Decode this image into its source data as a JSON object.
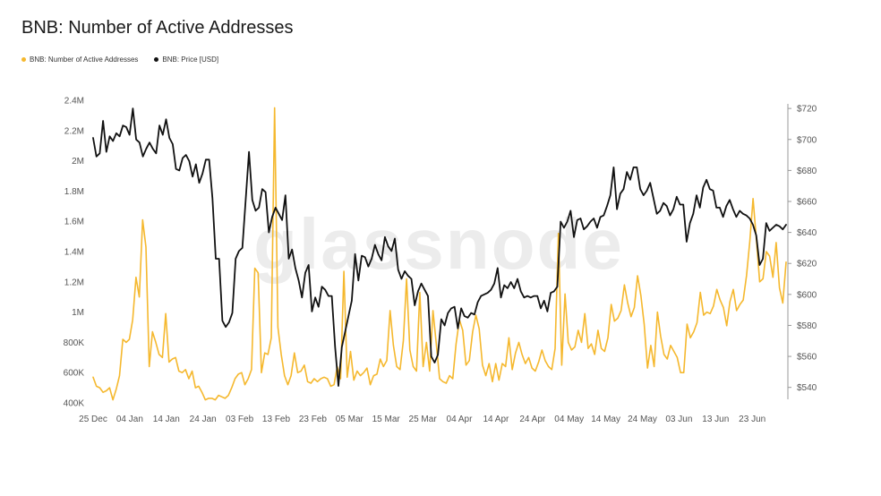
{
  "chart_data": {
    "type": "line",
    "title": "BNB: Number of Active Addresses",
    "watermark": "glassnode",
    "legend_position": "top-left",
    "grid": false,
    "x_ticks": [
      "25 Dec",
      "04 Jan",
      "14 Jan",
      "24 Jan",
      "03 Feb",
      "13 Feb",
      "23 Feb",
      "05 Mar",
      "15 Mar",
      "25 Mar",
      "04 Apr",
      "14 Apr",
      "24 Apr",
      "04 May",
      "14 May",
      "24 May",
      "03 Jun",
      "13 Jun",
      "23 Jun"
    ],
    "y_left": {
      "ticks": [
        "400K",
        "600K",
        "800K",
        "1M",
        "1.2M",
        "1.4M",
        "1.6M",
        "1.8M",
        "2M",
        "2.2M",
        "2.4M"
      ],
      "range": [
        400000,
        2400000
      ]
    },
    "y_right": {
      "ticks": [
        "$540",
        "$560",
        "$580",
        "$600",
        "$620",
        "$640",
        "$660",
        "$680",
        "$700",
        "$720"
      ],
      "range": [
        530,
        725
      ]
    },
    "series": [
      {
        "name": "BNB: Number of Active Addresses",
        "color": "#f5b82e",
        "axis": "left",
        "values": [
          570000,
          510000,
          500000,
          470000,
          480000,
          500000,
          420000,
          490000,
          580000,
          820000,
          800000,
          820000,
          950000,
          1230000,
          1100000,
          1610000,
          1430000,
          640000,
          870000,
          800000,
          720000,
          700000,
          990000,
          670000,
          690000,
          700000,
          610000,
          600000,
          620000,
          560000,
          610000,
          500000,
          510000,
          470000,
          420000,
          430000,
          430000,
          420000,
          450000,
          440000,
          430000,
          450000,
          500000,
          560000,
          590000,
          600000,
          520000,
          560000,
          620000,
          1290000,
          1260000,
          600000,
          730000,
          720000,
          830000,
          2350000,
          900000,
          720000,
          580000,
          520000,
          580000,
          730000,
          600000,
          610000,
          650000,
          540000,
          530000,
          560000,
          540000,
          560000,
          570000,
          560000,
          510000,
          520000,
          640000,
          560000,
          1270000,
          570000,
          740000,
          550000,
          610000,
          580000,
          600000,
          630000,
          520000,
          580000,
          590000,
          690000,
          640000,
          680000,
          1010000,
          780000,
          640000,
          620000,
          810000,
          1220000,
          750000,
          640000,
          610000,
          1130000,
          640000,
          800000,
          610000,
          1010000,
          790000,
          560000,
          540000,
          530000,
          580000,
          560000,
          790000,
          950000,
          880000,
          650000,
          680000,
          870000,
          980000,
          890000,
          650000,
          580000,
          660000,
          540000,
          660000,
          550000,
          660000,
          640000,
          830000,
          620000,
          730000,
          800000,
          720000,
          660000,
          700000,
          630000,
          610000,
          670000,
          750000,
          680000,
          640000,
          620000,
          760000,
          1520000,
          650000,
          1120000,
          800000,
          750000,
          770000,
          880000,
          800000,
          990000,
          760000,
          790000,
          720000,
          880000,
          760000,
          740000,
          830000,
          1050000,
          940000,
          960000,
          1010000,
          1180000,
          1060000,
          970000,
          1030000,
          1240000,
          1110000,
          920000,
          630000,
          780000,
          640000,
          1000000,
          840000,
          720000,
          690000,
          780000,
          740000,
          700000,
          600000,
          600000,
          920000,
          830000,
          870000,
          930000,
          1130000,
          980000,
          1000000,
          990000,
          1040000,
          1150000,
          1080000,
          1030000,
          910000,
          1070000,
          1150000,
          1010000,
          1050000,
          1080000,
          1240000,
          1470000,
          1750000,
          1480000,
          1200000,
          1220000,
          1400000,
          1370000,
          1230000,
          1460000,
          1160000,
          1060000,
          1330000
        ]
      },
      {
        "name": "BNB: Price [USD]",
        "color": "#111111",
        "axis": "right",
        "values": [
          701,
          689,
          691,
          712,
          692,
          702,
          699,
          704,
          702,
          709,
          708,
          703,
          720,
          700,
          698,
          689,
          694,
          698,
          694,
          691,
          709,
          703,
          713,
          701,
          697,
          681,
          680,
          688,
          690,
          686,
          676,
          684,
          672,
          678,
          687,
          687,
          662,
          623,
          623,
          583,
          579,
          582,
          588,
          623,
          628,
          630,
          661,
          692,
          661,
          654,
          656,
          668,
          666,
          640,
          650,
          656,
          652,
          648,
          664,
          623,
          629,
          617,
          609,
          598,
          614,
          619,
          589,
          598,
          592,
          605,
          603,
          599,
          599,
          566,
          541,
          566,
          576,
          586,
          596,
          626,
          609,
          625,
          624,
          618,
          623,
          632,
          626,
          622,
          637,
          631,
          628,
          636,
          616,
          610,
          615,
          612,
          610,
          593,
          602,
          607,
          603,
          599,
          560,
          556,
          561,
          584,
          580,
          588,
          591,
          592,
          578,
          591,
          586,
          585,
          588,
          587,
          595,
          599,
          600,
          601,
          603,
          607,
          617,
          598,
          606,
          604,
          608,
          604,
          610,
          602,
          598,
          599,
          598,
          599,
          599,
          591,
          596,
          589,
          601,
          602,
          605,
          647,
          643,
          647,
          654,
          637,
          648,
          649,
          642,
          644,
          647,
          649,
          643,
          650,
          651,
          657,
          664,
          682,
          655,
          665,
          668,
          679,
          674,
          682,
          682,
          668,
          664,
          667,
          672,
          662,
          652,
          654,
          659,
          657,
          651,
          655,
          663,
          658,
          658,
          634,
          646,
          652,
          664,
          656,
          669,
          674,
          668,
          667,
          656,
          656,
          650,
          657,
          661,
          655,
          650,
          654,
          652,
          651,
          649,
          645,
          638,
          619,
          623,
          646,
          641,
          643,
          645,
          644,
          642,
          645
        ]
      }
    ]
  }
}
